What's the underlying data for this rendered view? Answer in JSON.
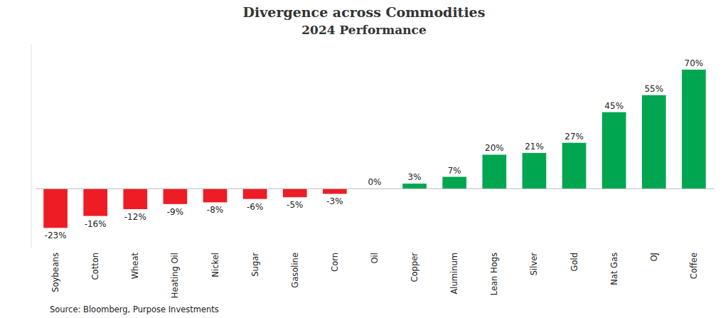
{
  "chart_data": {
    "type": "bar",
    "title": "Divergence across Commodities",
    "subtitle": "2024 Performance",
    "categories": [
      "Soybeans",
      "Cotton",
      "Wheat",
      "Heating Oil",
      "Nickel",
      "Sugar",
      "Gasoline",
      "Corn",
      "Oil",
      "Copper",
      "Aluminum",
      "Lean Hogs",
      "Silver",
      "Gold",
      "Nat Gas",
      "OJ",
      "Coffee"
    ],
    "values": [
      -23,
      -16,
      -12,
      -9,
      -8,
      -6,
      -5,
      -3,
      0,
      3,
      7,
      20,
      21,
      27,
      45,
      55,
      70
    ],
    "value_labels": [
      "-23%",
      "-16%",
      "-12%",
      "-9%",
      "-8%",
      "-6%",
      "-5%",
      "-3%",
      "0%",
      "3%",
      "7%",
      "20%",
      "21%",
      "27%",
      "45%",
      "55%",
      "70%"
    ],
    "colors": [
      "#ee1c25",
      "#ee1c25",
      "#ee1c25",
      "#ee1c25",
      "#ee1c25",
      "#ee1c25",
      "#ee1c25",
      "#ee1c25",
      "#00a650",
      "#00a650",
      "#00a650",
      "#00a650",
      "#00a650",
      "#00a650",
      "#00a650",
      "#00a650",
      "#00a650"
    ],
    "ylim": [
      -35,
      85
    ],
    "data_labels": true,
    "tick_labels": "x",
    "grid": false,
    "annotations": [
      "Source: Bloomberg, Purpose Investments"
    ]
  }
}
